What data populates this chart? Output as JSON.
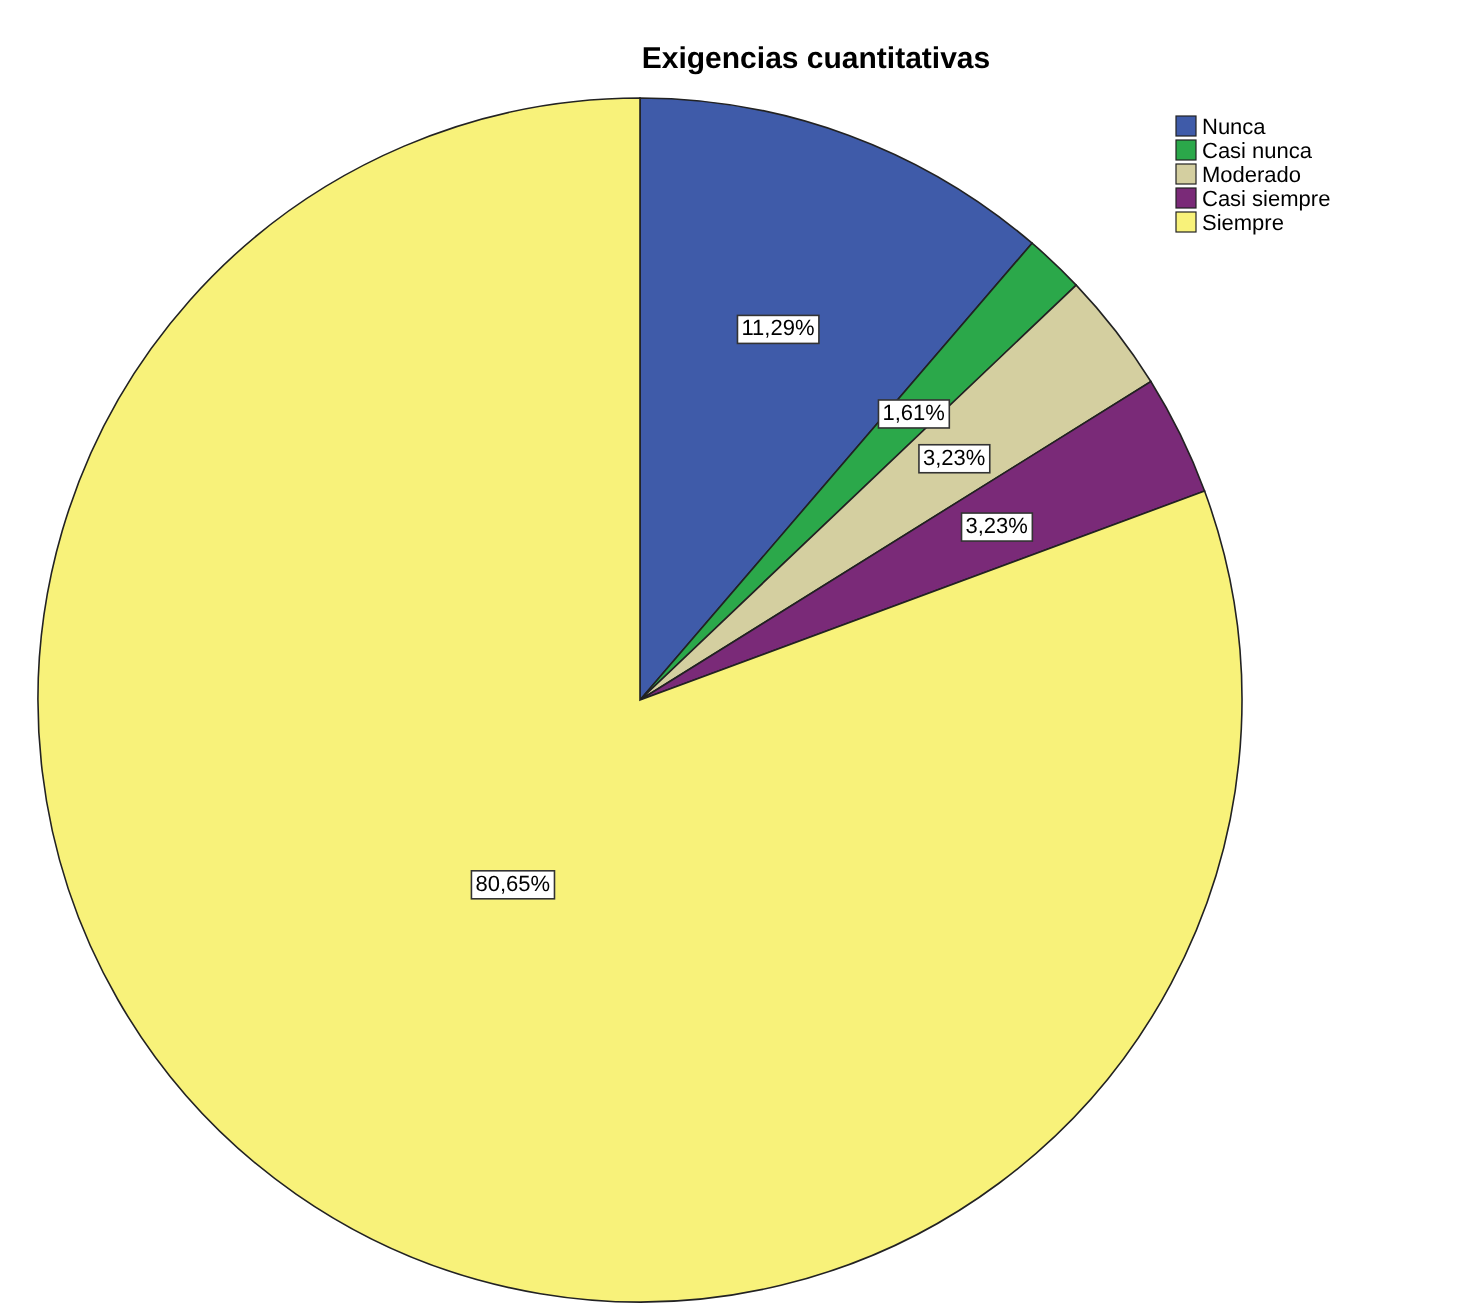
{
  "chart_data": {
    "type": "pie",
    "title": "Exigencias cuantitativas",
    "categories": [
      "Nunca",
      "Casi nunca",
      "Moderado",
      "Casi siempre",
      "Siempre"
    ],
    "values": [
      11.29,
      1.61,
      3.23,
      3.23,
      80.65
    ],
    "colors": [
      "#3f5ba9",
      "#2ba84a",
      "#d4cfa0",
      "#7a2a78",
      "#f8f27a"
    ],
    "value_labels": [
      "11,29%",
      "1,61%",
      "3,23%",
      "3,23%",
      "80,65%"
    ],
    "legend": "top right"
  }
}
